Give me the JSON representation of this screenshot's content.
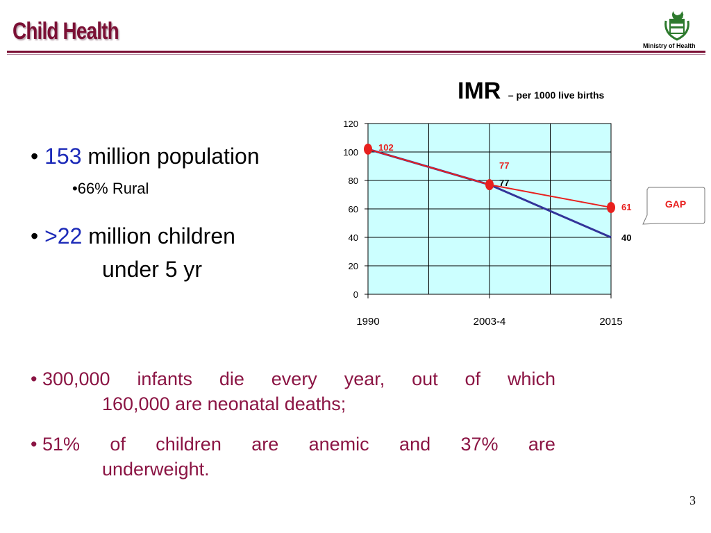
{
  "header": {
    "title": "Child Health",
    "ministry_label": "Ministry of Health",
    "accent_color": "#7b1035"
  },
  "left_bullets": {
    "b1_number": "153",
    "b1_text": "million population",
    "b1_sub": "•66% Rural",
    "b2_number": ">22",
    "b2_text_line1": "million children",
    "b2_text_line2": "under 5 yr",
    "number_color": "#1c2ab8"
  },
  "chart_header": {
    "title": "IMR",
    "subtitle": "– per 1000 live births"
  },
  "chart_data": {
    "type": "line",
    "categories": [
      "1990",
      "2003-4",
      "2015"
    ],
    "ylim": [
      0,
      120
    ],
    "yticks": [
      "0",
      "20",
      "40",
      "60",
      "80",
      "100",
      "120"
    ],
    "grid": true,
    "plot_bg": "#ccffff",
    "series": [
      {
        "color": "#333399",
        "values": [
          102,
          77,
          40
        ],
        "labels": [
          "102",
          "77",
          "40"
        ],
        "label_color": "#000000"
      },
      {
        "color": "#e8201e",
        "values": [
          102,
          77,
          61
        ],
        "labels": [
          "102",
          "77",
          "61"
        ],
        "label_color": "#e8201e",
        "markers": true
      }
    ],
    "callout": {
      "text": "GAP",
      "color": "#e8201e"
    }
  },
  "bottom_bullets": {
    "item1_line1_words": [
      "300,000",
      "infants",
      "die",
      "every",
      "year,",
      "out",
      "of",
      "which"
    ],
    "item1_line2": "160,000 are neonatal deaths;",
    "item2_line1_words": [
      "51%",
      "of",
      "children",
      "are",
      "anemic",
      "and",
      "37%",
      "are"
    ],
    "item2_line2": "underweight.",
    "color": "#8b1544"
  },
  "footer": {
    "page_number": "3"
  }
}
